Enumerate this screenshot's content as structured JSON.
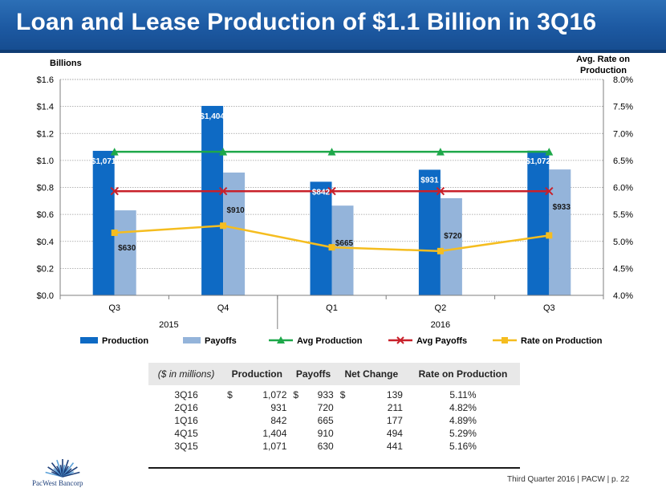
{
  "header": {
    "title": "Loan and Lease Production of $1.1 Billion in 3Q16"
  },
  "chart_data": {
    "type": "bar",
    "y_left_label": "Billions",
    "y_right_label_line1": "Avg. Rate on",
    "y_right_label_line2": "Production",
    "y_left_ticks": [
      "$0.0",
      "$0.2",
      "$0.4",
      "$0.6",
      "$0.8",
      "$1.0",
      "$1.2",
      "$1.4",
      "$1.6"
    ],
    "y_right_ticks": [
      "4.0%",
      "4.5%",
      "5.0%",
      "5.5%",
      "6.0%",
      "6.5%",
      "7.0%",
      "7.5%",
      "8.0%"
    ],
    "ylim_left": [
      0,
      1.6
    ],
    "ylim_right": [
      4.0,
      8.0
    ],
    "categories": [
      "Q3",
      "Q4",
      "Q1",
      "Q2",
      "Q3"
    ],
    "year_groups": [
      {
        "label": "2015",
        "span": [
          0,
          1
        ]
      },
      {
        "label": "2016",
        "span": [
          2,
          4
        ]
      }
    ],
    "series": [
      {
        "name": "Production",
        "kind": "bar",
        "color": "#0e6ac4",
        "values": [
          1.071,
          1.404,
          0.842,
          0.931,
          1.072
        ],
        "labels": [
          "$1,071",
          "$1,404",
          "$842",
          "$931",
          "$1,072"
        ]
      },
      {
        "name": "Payoffs",
        "kind": "bar",
        "color": "#94b4da",
        "values": [
          0.63,
          0.91,
          0.665,
          0.72,
          0.933
        ],
        "labels": [
          "$630",
          "$910",
          "$665",
          "$720",
          "$933"
        ]
      },
      {
        "name": "Avg Production",
        "kind": "line",
        "marker": "triangle",
        "color": "#1ea84a",
        "values": [
          1.064,
          1.064,
          1.064,
          1.064,
          1.064
        ]
      },
      {
        "name": "Avg Payoffs",
        "kind": "line",
        "marker": "x",
        "color": "#c8202a",
        "values": [
          0.772,
          0.772,
          0.772,
          0.772,
          0.772
        ]
      },
      {
        "name": "Rate on Production",
        "kind": "line",
        "marker": "square",
        "color": "#f5bd1f",
        "axis": "right",
        "values": [
          5.16,
          5.29,
          4.89,
          4.82,
          5.11
        ]
      }
    ]
  },
  "table": {
    "headers": [
      "($ in millions)",
      "Production",
      "Payoffs",
      "Net Change",
      "Rate on Production"
    ],
    "rows": [
      {
        "period": "3Q16",
        "production": "1,072",
        "payoffs": "933",
        "net": "139",
        "rate": "5.11%",
        "dollar": "$"
      },
      {
        "period": "2Q16",
        "production": "931",
        "payoffs": "720",
        "net": "211",
        "rate": "4.82%",
        "dollar": ""
      },
      {
        "period": "1Q16",
        "production": "842",
        "payoffs": "665",
        "net": "177",
        "rate": "4.89%",
        "dollar": ""
      },
      {
        "period": "4Q15",
        "production": "1,404",
        "payoffs": "910",
        "net": "494",
        "rate": "5.29%",
        "dollar": ""
      },
      {
        "period": "3Q15",
        "production": "1,071",
        "payoffs": "630",
        "net": "441",
        "rate": "5.16%",
        "dollar": ""
      }
    ]
  },
  "logo": {
    "text": "PacWest Bancorp"
  },
  "footer": {
    "text": "Third Quarter 2016 | PACW | p. 22"
  }
}
